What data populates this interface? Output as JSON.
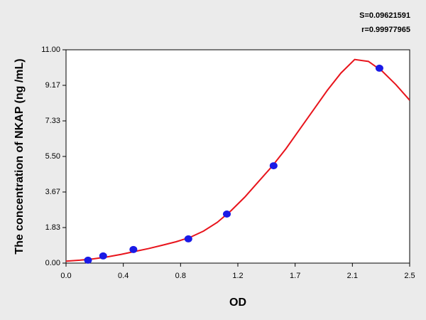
{
  "chart_data": {
    "type": "scatter",
    "annotations": [
      "S=0.09621591",
      "r=0.99977965"
    ],
    "xlabel": "OD",
    "ylabel": "The concentration of NKAP (ng /mL)",
    "xlim": [
      0,
      2.5
    ],
    "ylim": [
      0,
      11
    ],
    "xticks": [
      {
        "value": 0,
        "label": "0.0"
      },
      {
        "value": 0.4167,
        "label": "0.4"
      },
      {
        "value": 0.8333,
        "label": "0.8"
      },
      {
        "value": 1.25,
        "label": "1.2"
      },
      {
        "value": 1.6667,
        "label": "1.7"
      },
      {
        "value": 2.0833,
        "label": "2.1"
      },
      {
        "value": 2.5,
        "label": "2.5"
      }
    ],
    "yticks": [
      {
        "value": 0,
        "label": "0.00"
      },
      {
        "value": 1.8333,
        "label": "1.83"
      },
      {
        "value": 3.6667,
        "label": "3.67"
      },
      {
        "value": 5.5,
        "label": "5.50"
      },
      {
        "value": 7.3333,
        "label": "7.33"
      },
      {
        "value": 9.1667,
        "label": "9.17"
      },
      {
        "value": 11,
        "label": "11.00"
      }
    ],
    "series": [
      {
        "type": "line",
        "color": "#e8141c",
        "x": [
          0,
          0.1,
          0.2,
          0.3,
          0.4,
          0.5,
          0.6,
          0.7,
          0.8,
          0.9,
          1.0,
          1.1,
          1.2,
          1.3,
          1.4,
          1.5,
          1.6,
          1.7,
          1.8,
          1.9,
          2.0,
          2.1,
          2.2,
          2.3,
          2.4,
          2.5
        ],
        "values": [
          0.1,
          0.15,
          0.22,
          0.32,
          0.45,
          0.6,
          0.75,
          0.92,
          1.1,
          1.32,
          1.65,
          2.1,
          2.7,
          3.4,
          4.2,
          5.0,
          5.9,
          6.9,
          7.9,
          8.9,
          9.8,
          10.5,
          10.4,
          9.9,
          9.2,
          8.4
        ]
      },
      {
        "type": "scatter",
        "color": "#1a1ae6",
        "x": [
          0.16,
          0.27,
          0.49,
          0.89,
          1.17,
          1.51,
          2.28
        ],
        "values": [
          0.15,
          0.37,
          0.7,
          1.25,
          2.53,
          5.02,
          10.05
        ]
      }
    ]
  }
}
